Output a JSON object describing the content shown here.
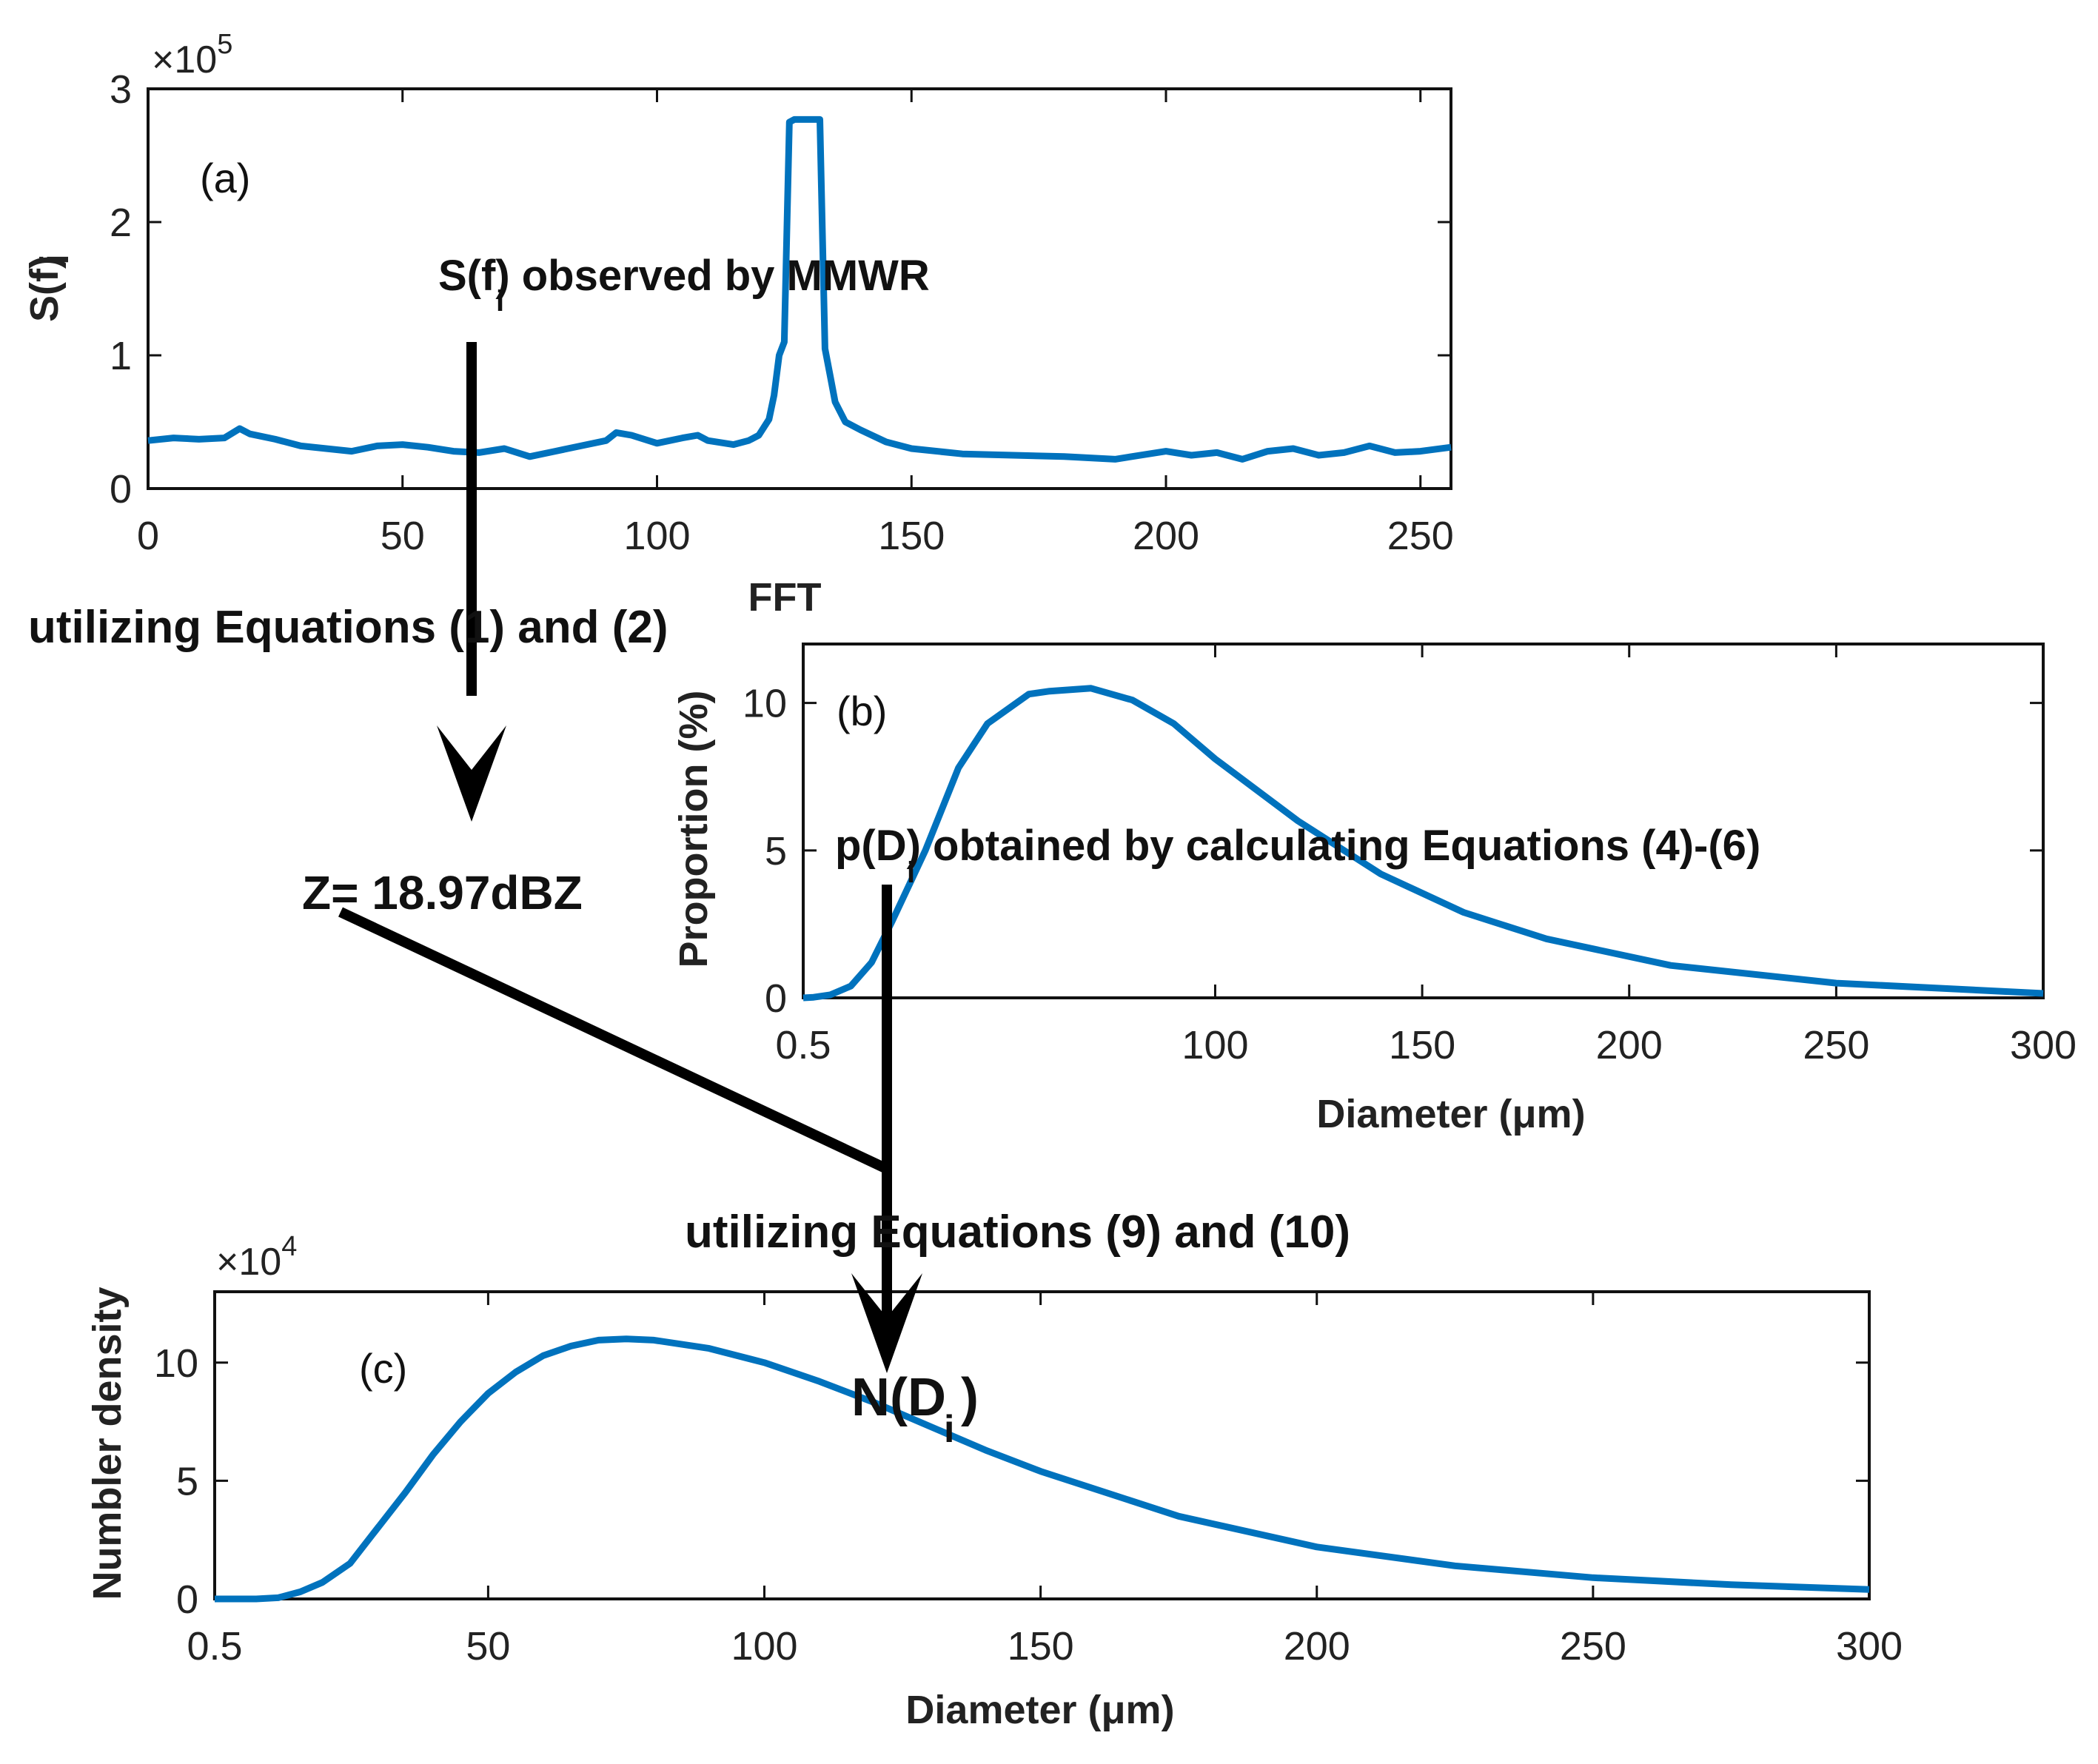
{
  "chart_data": [
    {
      "type": "line",
      "panel": "(a)",
      "ylabel": "S(f)",
      "ylabel_sub": "i",
      "xlabel": "FFT",
      "xlim": [
        0,
        256
      ],
      "ylim": [
        0,
        3
      ],
      "y_multiplier": "×10",
      "y_multiplier_exp": "5",
      "x_ticks": [
        0,
        50,
        100,
        150,
        200,
        250
      ],
      "y_ticks": [
        0,
        1,
        2,
        3
      ],
      "line_color": "#0072bd",
      "annotation": "S(f) observed by   MMWR",
      "series": [
        {
          "name": "S(fi)",
          "x": [
            0,
            5,
            10,
            15,
            18,
            20,
            25,
            30,
            35,
            40,
            45,
            50,
            55,
            60,
            65,
            70,
            75,
            80,
            85,
            90,
            92,
            95,
            100,
            105,
            108,
            110,
            115,
            118,
            120,
            122,
            123,
            124,
            125,
            126,
            127,
            128,
            129,
            130,
            131,
            132,
            133,
            134,
            135,
            137,
            140,
            145,
            150,
            160,
            170,
            180,
            190,
            200,
            205,
            210,
            215,
            220,
            225,
            230,
            235,
            240,
            245,
            250,
            256
          ],
          "y": [
            0.36,
            0.38,
            0.37,
            0.38,
            0.45,
            0.41,
            0.37,
            0.32,
            0.3,
            0.28,
            0.32,
            0.33,
            0.31,
            0.28,
            0.27,
            0.3,
            0.24,
            0.28,
            0.32,
            0.36,
            0.42,
            0.4,
            0.34,
            0.38,
            0.4,
            0.36,
            0.33,
            0.36,
            0.4,
            0.52,
            0.7,
            1.0,
            1.1,
            2.75,
            2.77,
            2.77,
            2.77,
            2.77,
            2.77,
            2.77,
            1.05,
            0.85,
            0.65,
            0.5,
            0.44,
            0.35,
            0.3,
            0.26,
            0.25,
            0.24,
            0.22,
            0.28,
            0.25,
            0.27,
            0.22,
            0.28,
            0.3,
            0.25,
            0.27,
            0.32,
            0.27,
            0.28,
            0.31
          ]
        }
      ]
    },
    {
      "type": "line",
      "panel": "(b)",
      "ylabel": "Proportion (%)",
      "xlabel": "Diameter (μm)",
      "xlim": [
        0.5,
        300
      ],
      "ylim": [
        0,
        12
      ],
      "x_ticks": [
        0.5,
        100,
        150,
        200,
        250,
        300
      ],
      "y_ticks": [
        0,
        5,
        10
      ],
      "line_color": "#0072bd",
      "annotation": "p(D)   obtained by calculating Equations (4)-(6)",
      "series": [
        {
          "name": "p(Di)",
          "x": [
            0.5,
            3,
            7,
            12,
            17,
            22,
            30,
            38,
            45,
            55,
            60,
            70,
            80,
            90,
            100,
            120,
            140,
            160,
            180,
            210,
            250,
            300
          ],
          "y": [
            0.0,
            0.02,
            0.1,
            0.4,
            1.2,
            2.6,
            5.0,
            7.8,
            9.3,
            10.3,
            10.4,
            10.5,
            10.1,
            9.3,
            8.1,
            6.0,
            4.2,
            2.9,
            2.0,
            1.1,
            0.5,
            0.15
          ]
        }
      ]
    },
    {
      "type": "line",
      "panel": "(c)",
      "ylabel": "Numbler density",
      "xlabel": "Diameter (μm)",
      "xlim": [
        0.5,
        300
      ],
      "ylim": [
        0,
        13
      ],
      "y_multiplier": "×10",
      "y_multiplier_exp": "4",
      "x_ticks": [
        0.5,
        50,
        100,
        150,
        200,
        250,
        300
      ],
      "y_ticks": [
        0,
        5,
        10
      ],
      "line_color": "#0072bd",
      "annotation": "N(D )",
      "series": [
        {
          "name": "N(Di)",
          "x": [
            0.5,
            8,
            12,
            16,
            20,
            25,
            30,
            35,
            40,
            45,
            50,
            55,
            60,
            65,
            70,
            75,
            80,
            90,
            100,
            110,
            120,
            130,
            140,
            150,
            175,
            200,
            225,
            250,
            275,
            300
          ],
          "y": [
            0,
            0.0,
            0.05,
            0.3,
            0.7,
            1.5,
            3.0,
            4.5,
            6.1,
            7.5,
            8.7,
            9.6,
            10.3,
            10.7,
            10.95,
            11.0,
            10.95,
            10.6,
            10.0,
            9.2,
            8.3,
            7.3,
            6.3,
            5.4,
            3.5,
            2.2,
            1.4,
            0.9,
            0.6,
            0.4
          ]
        }
      ]
    }
  ],
  "notes": {
    "eq12": "utilizing Equations (1) and (2)",
    "z_value": "Z= 18.97dBZ",
    "eq910": "utilizing  Equations (9) and (10)",
    "sub_i": "i"
  }
}
